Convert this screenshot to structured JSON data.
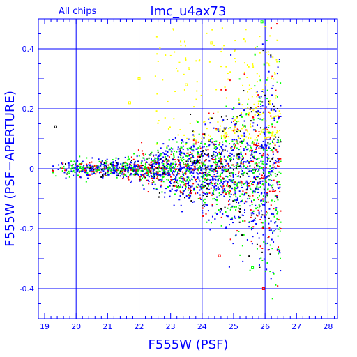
{
  "chart_data": {
    "type": "scatter",
    "title": "lmc_u4ax73",
    "subtitle": "All chips",
    "xlabel": "F555W (PSF)",
    "ylabel": "F555W (PSF−APERTURE)",
    "xlim": [
      18.8,
      28.3
    ],
    "ylim": [
      -0.5,
      0.5
    ],
    "xticks": [
      19,
      20,
      21,
      22,
      23,
      24,
      25,
      26,
      27,
      28
    ],
    "yticks": [
      -0.4,
      -0.2,
      0,
      0.2,
      0.4
    ],
    "grid": true,
    "axis_color": "#0000ff",
    "series_colors": [
      "#0000ff",
      "#00ff00",
      "#ff0000",
      "#ffff00",
      "#000000"
    ],
    "outliers": [
      {
        "x": 24.55,
        "y": -0.29,
        "color": "#ff0000"
      },
      {
        "x": 25.95,
        "y": -0.4,
        "color": "#ff0000"
      },
      {
        "x": 26.0,
        "y": 0.47,
        "color": "#ffff00"
      },
      {
        "x": 25.9,
        "y": 0.49,
        "color": "#00ff00"
      },
      {
        "x": 22.0,
        "y": 0.3,
        "color": "#ffff00"
      },
      {
        "x": 21.7,
        "y": 0.22,
        "color": "#ffff00"
      },
      {
        "x": 19.35,
        "y": 0.14,
        "color": "#000000"
      },
      {
        "x": 23.5,
        "y": 0.28,
        "color": "#ffff00"
      },
      {
        "x": 24.3,
        "y": 0.42,
        "color": "#ffff00"
      },
      {
        "x": 25.6,
        "y": -0.33,
        "color": "#00ff00"
      }
    ]
  }
}
